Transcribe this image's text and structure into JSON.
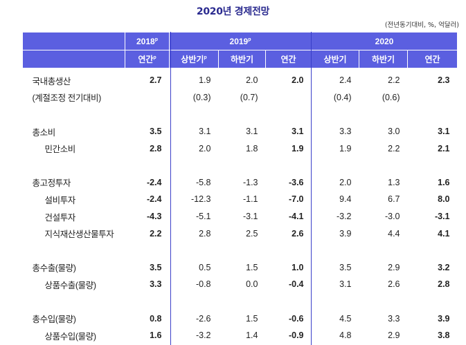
{
  "title": "2020년 경제전망",
  "unit": "(전년동기대비, %, 억달러)",
  "header": {
    "y2018": "2018",
    "y2018_sup": "p",
    "y2019": "2019",
    "y2019_sup": "p",
    "y2020": "2020",
    "sub": {
      "annual_2018": "연간",
      "annual_2018_sup": "p",
      "h1_2019": "상반기",
      "h1_2019_sup": "p",
      "h2_2019": "하반기",
      "annual_2019": "연간",
      "h1_2020": "상반기",
      "h2_2020": "하반기",
      "annual_2020": "연간"
    }
  },
  "rows": [
    {
      "label": "국내총생산",
      "values": [
        "2.7",
        "1.9",
        "2.0",
        "2.0",
        "2.4",
        "2.2",
        "2.3"
      ]
    },
    {
      "label": "(계절조정 전기대비)",
      "values": [
        "",
        "(0.3)",
        "(0.7)",
        "",
        "(0.4)",
        "(0.6)",
        ""
      ]
    },
    {
      "label": "총소비",
      "values": [
        "3.5",
        "3.1",
        "3.1",
        "3.1",
        "3.3",
        "3.0",
        "3.1"
      ]
    },
    {
      "label": "민간소비",
      "values": [
        "2.8",
        "2.0",
        "1.8",
        "1.9",
        "1.9",
        "2.2",
        "2.1"
      ]
    },
    {
      "label": "총고정투자",
      "values": [
        "-2.4",
        "-5.8",
        "-1.3",
        "-3.6",
        "2.0",
        "1.3",
        "1.6"
      ]
    },
    {
      "label": "설비투자",
      "values": [
        "-2.4",
        "-12.3",
        "-1.1",
        "-7.0",
        "9.4",
        "6.7",
        "8.0"
      ]
    },
    {
      "label": "건설투자",
      "values": [
        "-4.3",
        "-5.1",
        "-3.1",
        "-4.1",
        "-3.2",
        "-3.0",
        "-3.1"
      ]
    },
    {
      "label": "지식재산생산물투자",
      "values": [
        "2.2",
        "2.8",
        "2.5",
        "2.6",
        "3.9",
        "4.4",
        "4.1"
      ]
    },
    {
      "label": "총수출(물량)",
      "values": [
        "3.5",
        "0.5",
        "1.5",
        "1.0",
        "3.5",
        "2.9",
        "3.2"
      ]
    },
    {
      "label": "상품수출(물량)",
      "values": [
        "3.3",
        "-0.8",
        "0.0",
        "-0.4",
        "3.1",
        "2.6",
        "2.8"
      ]
    },
    {
      "label": "총수입(물량)",
      "values": [
        "0.8",
        "-2.6",
        "1.5",
        "-0.6",
        "4.5",
        "3.3",
        "3.9"
      ]
    },
    {
      "label": "상품수입(물량)",
      "values": [
        "1.6",
        "-3.2",
        "1.4",
        "-0.9",
        "4.8",
        "2.9",
        "3.8"
      ]
    }
  ]
}
